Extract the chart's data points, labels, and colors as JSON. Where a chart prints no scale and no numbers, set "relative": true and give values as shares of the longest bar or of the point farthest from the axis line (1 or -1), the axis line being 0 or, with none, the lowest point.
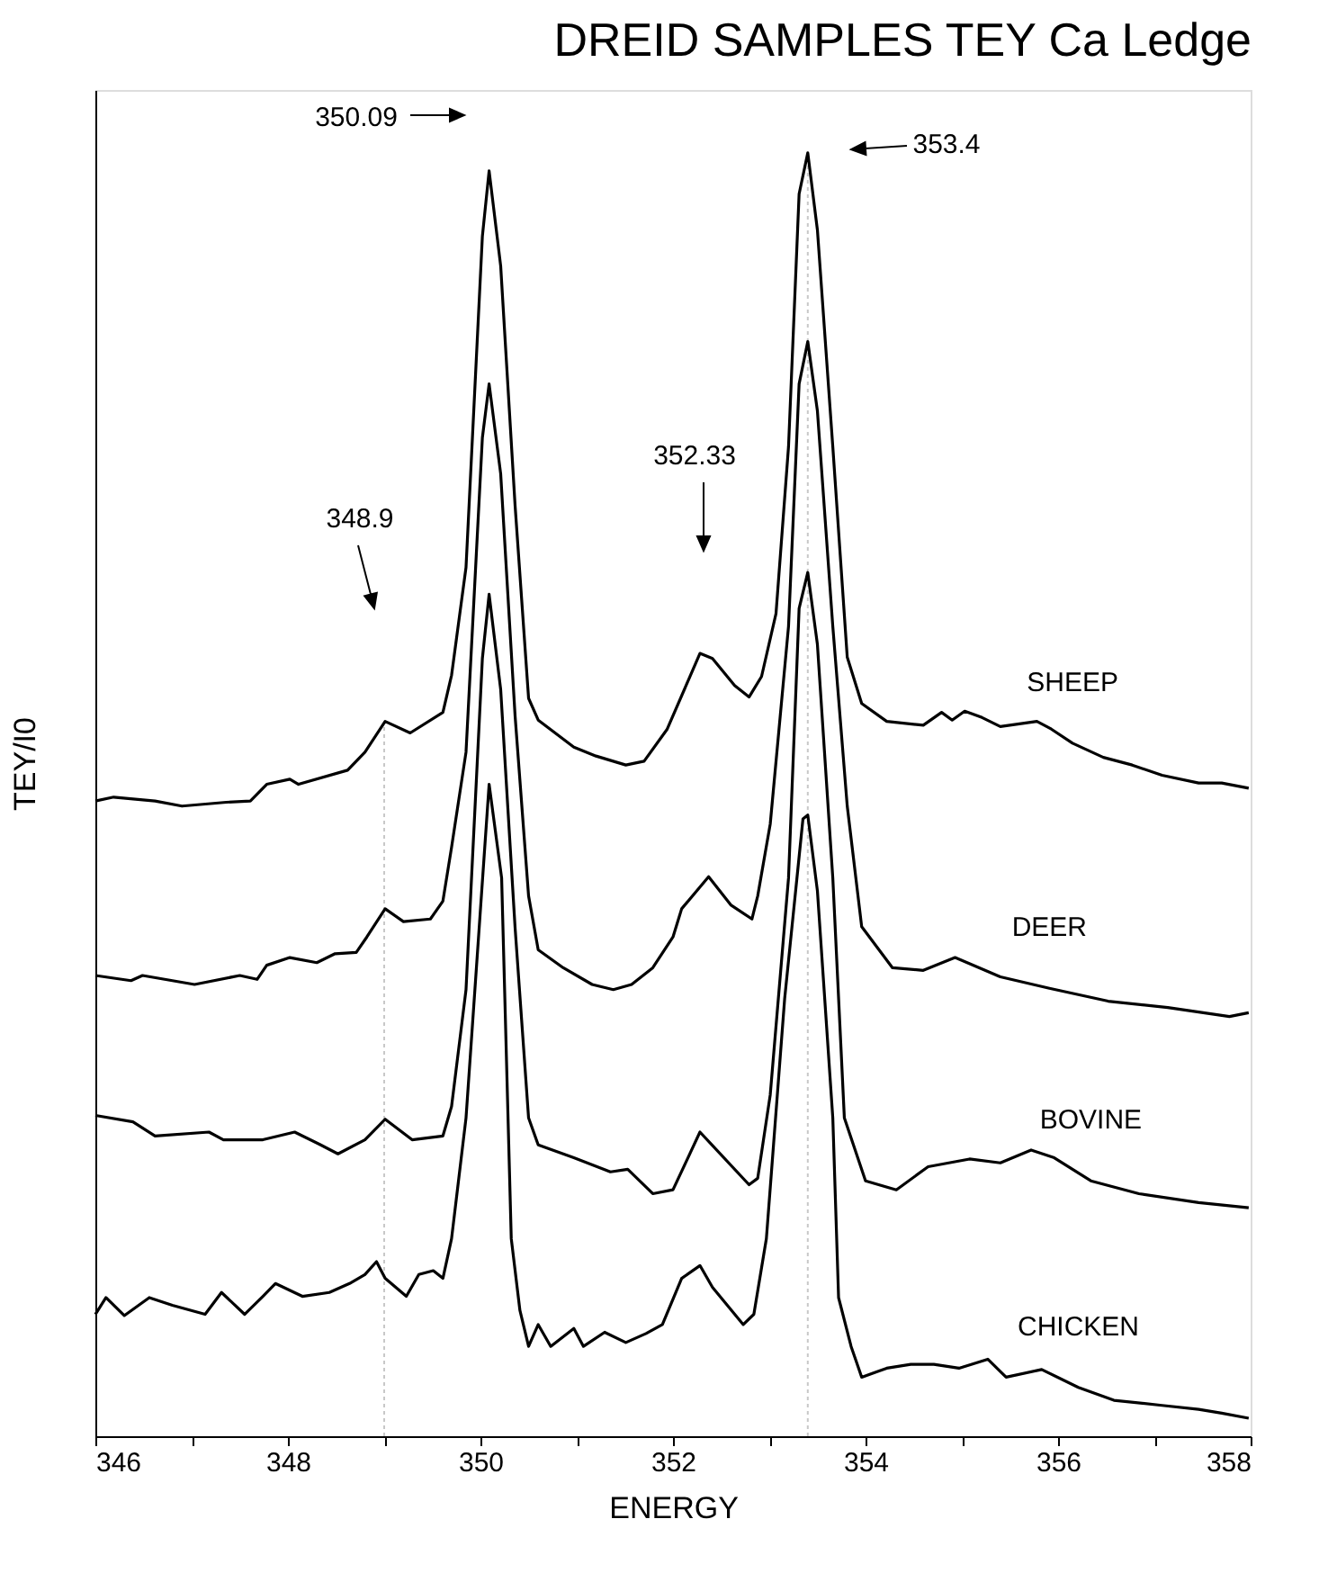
{
  "chart_data": {
    "type": "line",
    "title": "DREID SAMPLES TEY Ca Ledge",
    "xlabel": "ENERGY",
    "ylabel": "TEY/I0",
    "relative": true,
    "xlim": [
      346,
      358
    ],
    "xticks": [
      346,
      {
        "value": 347,
        "label": null
      },
      348,
      {
        "value": 349,
        "label": null
      },
      350,
      {
        "value": 351,
        "label": null
      },
      352,
      {
        "value": 353,
        "label": null
      },
      354,
      {
        "value": 355,
        "label": null
      },
      356,
      {
        "value": 357,
        "label": null
      },
      358
    ],
    "grid": false,
    "legend": false,
    "marker": "none",
    "line_style": "solid",
    "series": [
      {
        "name": "SHEEP",
        "color": "#000000",
        "x": [
          346.0,
          346.19,
          346.62,
          346.9,
          347.36,
          347.61,
          347.78,
          348.02,
          348.11,
          348.62,
          348.8,
          349.01,
          349.27,
          349.61,
          349.7,
          349.85,
          350.02,
          350.09,
          350.21,
          350.36,
          350.5,
          350.6,
          350.97,
          351.2,
          351.51,
          351.7,
          351.94,
          352.28,
          352.41,
          352.64,
          352.79,
          352.92,
          353.07,
          353.2,
          353.31,
          353.4,
          353.5,
          353.66,
          353.81,
          353.96,
          354.22,
          354.6,
          354.79,
          354.9,
          355.03,
          355.21,
          355.4,
          355.78,
          355.93,
          356.15,
          356.47,
          356.77,
          357.08,
          357.46,
          357.7,
          357.98
        ],
        "values": [
          0.495,
          0.498,
          0.495,
          0.491,
          0.494,
          0.495,
          0.508,
          0.512,
          0.508,
          0.519,
          0.533,
          0.557,
          0.548,
          0.564,
          0.593,
          0.677,
          0.935,
          0.986,
          0.912,
          0.725,
          0.575,
          0.558,
          0.537,
          0.53,
          0.523,
          0.526,
          0.551,
          0.61,
          0.606,
          0.585,
          0.576,
          0.592,
          0.641,
          0.771,
          0.968,
          1.0,
          0.94,
          0.771,
          0.607,
          0.571,
          0.557,
          0.554,
          0.564,
          0.558,
          0.565,
          0.56,
          0.553,
          0.557,
          0.551,
          0.54,
          0.529,
          0.523,
          0.515,
          0.509,
          0.509,
          0.505
        ]
      },
      {
        "name": "DEER",
        "color": "#000000",
        "x": [
          346.0,
          346.37,
          346.49,
          347.03,
          347.5,
          347.68,
          347.78,
          348.02,
          348.3,
          348.49,
          348.71,
          348.82,
          349.01,
          349.2,
          349.48,
          349.61,
          349.7,
          349.85,
          350.02,
          350.09,
          350.21,
          350.36,
          350.5,
          350.6,
          350.86,
          351.16,
          351.38,
          351.57,
          351.79,
          352.0,
          352.09,
          352.37,
          352.6,
          352.82,
          352.88,
          353.01,
          353.2,
          353.31,
          353.4,
          353.5,
          353.66,
          353.81,
          353.96,
          354.28,
          354.6,
          354.93,
          355.4,
          355.91,
          356.52,
          357.14,
          357.78,
          357.98
        ],
        "values": [
          0.359,
          0.355,
          0.359,
          0.352,
          0.359,
          0.356,
          0.367,
          0.373,
          0.369,
          0.376,
          0.377,
          0.389,
          0.411,
          0.401,
          0.403,
          0.417,
          0.459,
          0.533,
          0.778,
          0.82,
          0.75,
          0.561,
          0.421,
          0.379,
          0.365,
          0.352,
          0.348,
          0.352,
          0.365,
          0.389,
          0.411,
          0.436,
          0.414,
          0.403,
          0.421,
          0.477,
          0.631,
          0.82,
          0.853,
          0.799,
          0.631,
          0.491,
          0.397,
          0.365,
          0.363,
          0.373,
          0.358,
          0.349,
          0.339,
          0.334,
          0.327,
          0.33
        ]
      },
      {
        "name": "BOVINE",
        "color": "#000000",
        "x": [
          346.0,
          346.39,
          346.62,
          347.18,
          347.33,
          347.74,
          348.07,
          348.34,
          348.52,
          348.8,
          349.01,
          349.29,
          349.61,
          349.7,
          349.85,
          350.02,
          350.09,
          350.21,
          350.36,
          350.5,
          350.6,
          350.97,
          351.35,
          351.53,
          351.79,
          352.0,
          352.28,
          352.79,
          352.88,
          353.01,
          353.2,
          353.31,
          353.4,
          353.5,
          353.66,
          353.78,
          354.0,
          354.32,
          354.65,
          355.08,
          355.4,
          355.72,
          355.96,
          356.34,
          356.84,
          357.46,
          357.98
        ],
        "values": [
          0.25,
          0.245,
          0.234,
          0.237,
          0.231,
          0.231,
          0.237,
          0.227,
          0.22,
          0.231,
          0.247,
          0.231,
          0.234,
          0.257,
          0.348,
          0.606,
          0.656,
          0.582,
          0.396,
          0.248,
          0.227,
          0.217,
          0.206,
          0.208,
          0.189,
          0.192,
          0.237,
          0.196,
          0.201,
          0.266,
          0.435,
          0.645,
          0.673,
          0.617,
          0.435,
          0.248,
          0.199,
          0.192,
          0.21,
          0.216,
          0.213,
          0.223,
          0.217,
          0.199,
          0.189,
          0.182,
          0.178
        ]
      },
      {
        "name": "CHICKEN",
        "color": "#000000",
        "x": [
          346.0,
          346.11,
          346.3,
          346.56,
          346.8,
          347.14,
          347.31,
          347.55,
          347.74,
          347.87,
          348.15,
          348.43,
          348.64,
          348.8,
          348.92,
          349.01,
          349.23,
          349.36,
          349.51,
          349.61,
          349.7,
          349.85,
          350.09,
          350.22,
          350.32,
          350.41,
          350.5,
          350.6,
          350.73,
          350.97,
          351.07,
          351.29,
          351.51,
          351.72,
          351.89,
          352.09,
          352.28,
          352.41,
          352.73,
          352.84,
          352.97,
          353.16,
          353.35,
          353.4,
          353.5,
          353.66,
          353.72,
          353.85,
          353.96,
          354.22,
          354.47,
          354.71,
          354.97,
          355.27,
          355.46,
          355.83,
          356.21,
          356.58,
          357.08,
          357.46,
          357.7,
          357.98
        ],
        "values": [
          0.095,
          0.108,
          0.094,
          0.108,
          0.102,
          0.095,
          0.112,
          0.095,
          0.109,
          0.119,
          0.109,
          0.112,
          0.119,
          0.126,
          0.136,
          0.123,
          0.109,
          0.126,
          0.129,
          0.123,
          0.154,
          0.248,
          0.508,
          0.435,
          0.154,
          0.098,
          0.07,
          0.087,
          0.07,
          0.084,
          0.07,
          0.081,
          0.073,
          0.08,
          0.087,
          0.123,
          0.133,
          0.116,
          0.087,
          0.095,
          0.154,
          0.341,
          0.481,
          0.484,
          0.425,
          0.248,
          0.108,
          0.07,
          0.046,
          0.053,
          0.056,
          0.056,
          0.053,
          0.06,
          0.046,
          0.052,
          0.038,
          0.028,
          0.024,
          0.021,
          0.018,
          0.014
        ]
      }
    ],
    "ref_lines": [
      {
        "axis": "x",
        "value": 349.0,
        "color": "#c8c8c8",
        "line_style": "dotted"
      },
      {
        "axis": "x",
        "value": 353.4,
        "color": "#c8c8c8",
        "line_style": "dotted"
      }
    ],
    "annotations": [
      "350.09",
      "353.4",
      "348.9",
      "352.33"
    ]
  }
}
